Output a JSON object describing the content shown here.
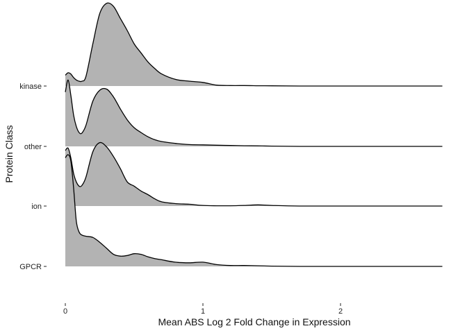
{
  "chart_data": {
    "type": "ridgeline",
    "title": "",
    "xlabel": "Mean ABS Log 2 Fold Change in Expression",
    "ylabel": "Protein Class",
    "xlim": [
      -0.05,
      2.74
    ],
    "x_ticks": [
      "0",
      "1",
      "2"
    ],
    "x_tick_values": [
      0,
      1,
      2
    ],
    "grid": false,
    "legend": "none",
    "fill_color": "#b3b3b3",
    "line_color": "#000000",
    "categories": [
      "GPCR",
      "ion",
      "other",
      "kinase"
    ],
    "x": [
      0,
      0.02,
      0.04,
      0.06,
      0.08,
      0.1,
      0.12,
      0.15,
      0.2,
      0.25,
      0.3,
      0.35,
      0.4,
      0.45,
      0.5,
      0.55,
      0.6,
      0.65,
      0.7,
      0.8,
      0.9,
      1.0,
      1.1,
      1.2,
      1.3,
      1.4,
      1.5,
      1.7,
      2.0,
      2.3,
      2.72
    ],
    "series": [
      {
        "name": "GPCR",
        "values": [
          1.8,
          1.85,
          1.75,
          1.3,
          0.75,
          0.57,
          0.52,
          0.5,
          0.48,
          0.4,
          0.3,
          0.2,
          0.17,
          0.18,
          0.21,
          0.2,
          0.16,
          0.13,
          0.11,
          0.07,
          0.06,
          0.07,
          0.03,
          0.015,
          0.015,
          0.01,
          0.005,
          0,
          0,
          0,
          0
        ]
      },
      {
        "name": "ion",
        "values": [
          0.92,
          0.96,
          0.8,
          0.54,
          0.4,
          0.33,
          0.34,
          0.48,
          0.9,
          1.05,
          0.98,
          0.82,
          0.62,
          0.4,
          0.33,
          0.25,
          0.19,
          0.12,
          0.07,
          0.04,
          0.03,
          0.01,
          0.005,
          0.005,
          0.01,
          0.02,
          0.01,
          0,
          0,
          0,
          0
        ]
      },
      {
        "name": "other",
        "values": [
          0.9,
          1.1,
          0.85,
          0.52,
          0.33,
          0.23,
          0.22,
          0.35,
          0.75,
          0.93,
          0.95,
          0.82,
          0.62,
          0.44,
          0.31,
          0.23,
          0.16,
          0.11,
          0.08,
          0.05,
          0.03,
          0.025,
          0.02,
          0.015,
          0.01,
          0.008,
          0.005,
          0,
          0,
          0,
          0
        ]
      },
      {
        "name": "kinase",
        "values": [
          0.18,
          0.22,
          0.2,
          0.14,
          0.1,
          0.08,
          0.08,
          0.16,
          0.7,
          1.2,
          1.37,
          1.32,
          1.12,
          0.92,
          0.7,
          0.55,
          0.4,
          0.29,
          0.2,
          0.11,
          0.08,
          0.06,
          0.015,
          0.008,
          0.008,
          0.005,
          0.003,
          0,
          0,
          0,
          0
        ]
      }
    ]
  }
}
